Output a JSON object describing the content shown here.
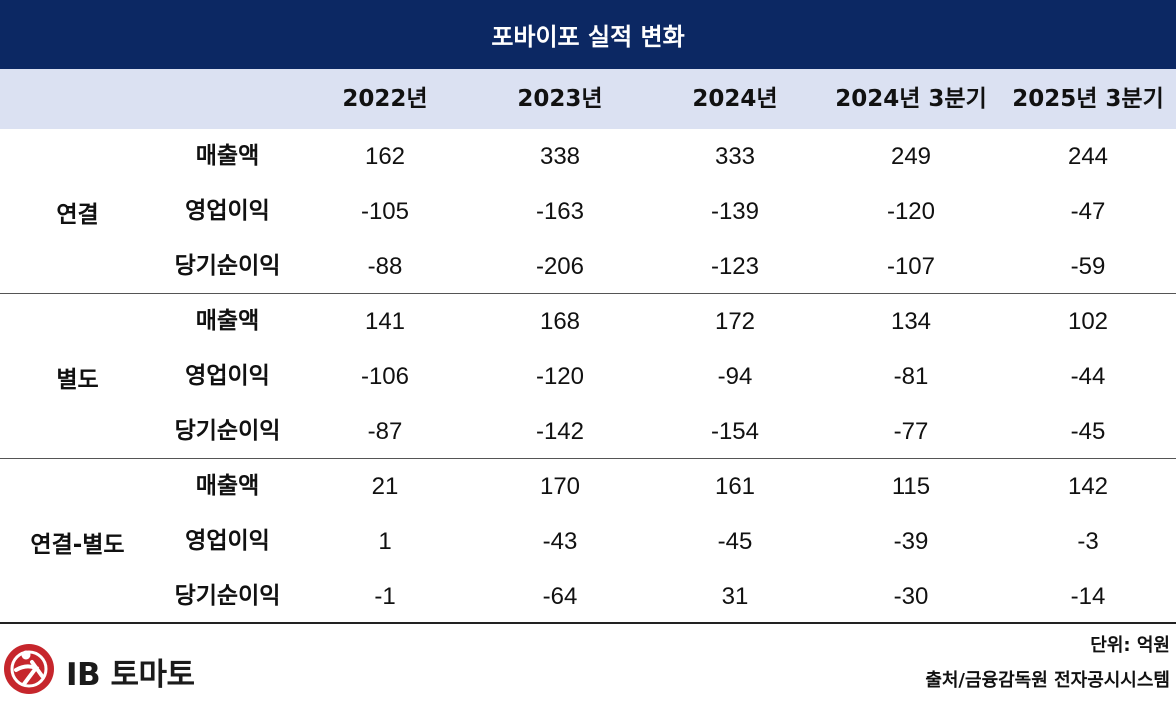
{
  "title": "포바이포 실적 변화",
  "columns": [
    "2022년",
    "2023년",
    "2024년",
    "2024년 3분기",
    "2025년 3분기"
  ],
  "groups": [
    {
      "label": "연결",
      "rows": [
        {
          "metric": "매출액",
          "values": [
            "162",
            "338",
            "333",
            "249",
            "244"
          ]
        },
        {
          "metric": "영업이익",
          "values": [
            "-105",
            "-163",
            "-139",
            "-120",
            "-47"
          ]
        },
        {
          "metric": "당기순이익",
          "values": [
            "-88",
            "-206",
            "-123",
            "-107",
            "-59"
          ]
        }
      ]
    },
    {
      "label": "별도",
      "rows": [
        {
          "metric": "매출액",
          "values": [
            "141",
            "168",
            "172",
            "134",
            "102"
          ]
        },
        {
          "metric": "영업이익",
          "values": [
            "-106",
            "-120",
            "-94",
            "-81",
            "-44"
          ]
        },
        {
          "metric": "당기순이익",
          "values": [
            "-87",
            "-142",
            "-154",
            "-77",
            "-45"
          ]
        }
      ]
    },
    {
      "label": "연결-별도",
      "rows": [
        {
          "metric": "매출액",
          "values": [
            "21",
            "170",
            "161",
            "115",
            "142"
          ]
        },
        {
          "metric": "영업이익",
          "values": [
            "1",
            "-43",
            "-45",
            "-39",
            "-3"
          ]
        },
        {
          "metric": "당기순이익",
          "values": [
            "-1",
            "-64",
            "31",
            "-30",
            "-14"
          ]
        }
      ]
    }
  ],
  "footer": {
    "logo_text": "IB 토마토",
    "unit": "단위: 억원",
    "source": "출처/금융감독원 전자공시시스템"
  },
  "colors": {
    "title_bg": "#0c2863",
    "header_bg": "#dbe1f2",
    "logo_red": "#c6262c"
  },
  "icons": [
    "ib-tomato-logo-icon"
  ]
}
